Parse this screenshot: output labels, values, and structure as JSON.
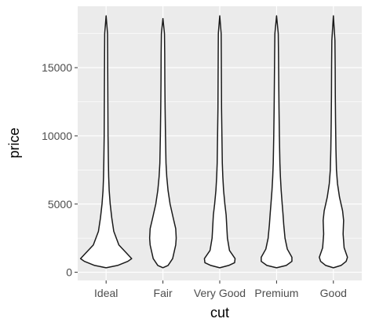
{
  "chart_data": {
    "type": "violin",
    "title": "",
    "xlabel": "cut",
    "ylabel": "price",
    "categories": [
      "Ideal",
      "Fair",
      "Very Good",
      "Premium",
      "Good"
    ],
    "ylim": [
      -600,
      19500
    ],
    "yticks": [
      0,
      5000,
      10000,
      15000
    ],
    "ytick_labels": [
      "0",
      "5000",
      "10000",
      "15000"
    ],
    "grid": true,
    "legend": "none",
    "colors": {
      "panel": "#ebebeb",
      "grid": "#ffffff",
      "violin_stroke": "#1a1a1a",
      "violin_fill": "#ffffff"
    },
    "series": [
      {
        "category": "Ideal",
        "profile": [
          [
            330,
            0
          ],
          [
            500,
            0.45
          ],
          [
            800,
            0.85
          ],
          [
            1000,
            1.0
          ],
          [
            1400,
            0.8
          ],
          [
            2000,
            0.5
          ],
          [
            3000,
            0.3
          ],
          [
            4000,
            0.22
          ],
          [
            5000,
            0.16
          ],
          [
            6000,
            0.12
          ],
          [
            7000,
            0.1
          ],
          [
            8000,
            0.09
          ],
          [
            10000,
            0.075
          ],
          [
            12000,
            0.07
          ],
          [
            14000,
            0.065
          ],
          [
            16000,
            0.06
          ],
          [
            17500,
            0.055
          ],
          [
            18800,
            0
          ]
        ]
      },
      {
        "category": "Fair",
        "profile": [
          [
            330,
            0
          ],
          [
            500,
            0.2
          ],
          [
            1000,
            0.38
          ],
          [
            2000,
            0.5
          ],
          [
            2500,
            0.52
          ],
          [
            3200,
            0.5
          ],
          [
            4000,
            0.4
          ],
          [
            5000,
            0.28
          ],
          [
            6000,
            0.2
          ],
          [
            7000,
            0.15
          ],
          [
            8000,
            0.12
          ],
          [
            10000,
            0.1
          ],
          [
            12000,
            0.085
          ],
          [
            14000,
            0.075
          ],
          [
            16000,
            0.07
          ],
          [
            17500,
            0.06
          ],
          [
            18600,
            0
          ]
        ]
      },
      {
        "category": "Very Good",
        "profile": [
          [
            330,
            0
          ],
          [
            500,
            0.35
          ],
          [
            700,
            0.58
          ],
          [
            1000,
            0.6
          ],
          [
            1600,
            0.38
          ],
          [
            2500,
            0.3
          ],
          [
            3500,
            0.27
          ],
          [
            4200,
            0.25
          ],
          [
            5000,
            0.2
          ],
          [
            6000,
            0.15
          ],
          [
            7000,
            0.12
          ],
          [
            8000,
            0.1
          ],
          [
            10000,
            0.085
          ],
          [
            12000,
            0.07
          ],
          [
            14000,
            0.065
          ],
          [
            16000,
            0.06
          ],
          [
            17500,
            0.055
          ],
          [
            18800,
            0
          ]
        ]
      },
      {
        "category": "Premium",
        "profile": [
          [
            330,
            0
          ],
          [
            500,
            0.38
          ],
          [
            800,
            0.6
          ],
          [
            1100,
            0.6
          ],
          [
            1700,
            0.42
          ],
          [
            2500,
            0.33
          ],
          [
            3500,
            0.28
          ],
          [
            4300,
            0.25
          ],
          [
            5000,
            0.22
          ],
          [
            6000,
            0.18
          ],
          [
            7000,
            0.15
          ],
          [
            8000,
            0.13
          ],
          [
            10000,
            0.11
          ],
          [
            12000,
            0.095
          ],
          [
            14000,
            0.085
          ],
          [
            16000,
            0.075
          ],
          [
            17500,
            0.065
          ],
          [
            18800,
            0
          ]
        ]
      },
      {
        "category": "Good",
        "profile": [
          [
            330,
            0
          ],
          [
            500,
            0.3
          ],
          [
            800,
            0.5
          ],
          [
            1100,
            0.55
          ],
          [
            1800,
            0.42
          ],
          [
            2800,
            0.38
          ],
          [
            3800,
            0.4
          ],
          [
            4500,
            0.36
          ],
          [
            5500,
            0.24
          ],
          [
            6500,
            0.16
          ],
          [
            7500,
            0.12
          ],
          [
            9000,
            0.1
          ],
          [
            11000,
            0.085
          ],
          [
            13000,
            0.075
          ],
          [
            15000,
            0.07
          ],
          [
            17000,
            0.06
          ],
          [
            18800,
            0
          ]
        ]
      }
    ]
  }
}
